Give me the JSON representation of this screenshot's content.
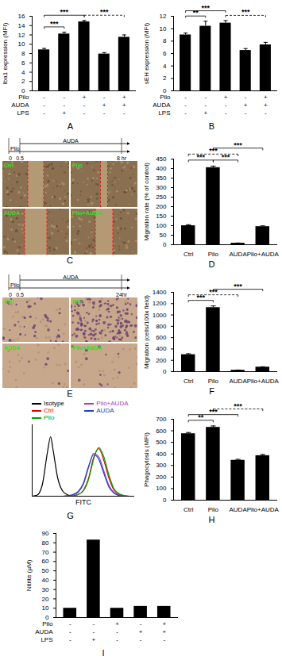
{
  "chart_data": [
    {
      "type": "bar",
      "title": "A",
      "ylabel": "Iba1 expression (MFI)",
      "categories": [
        null,
        null,
        null,
        null,
        null
      ],
      "values": [
        8.8,
        12.2,
        14.8,
        7.9,
        11.5
      ],
      "errors": [
        0.3,
        0.4,
        0.3,
        0.3,
        0.5
      ],
      "color": "#000000",
      "ylim": [
        0,
        16
      ],
      "yticks": [
        0,
        2,
        4,
        6,
        8,
        10,
        12,
        14,
        16
      ],
      "conditions": [
        {
          "name": "Pilo",
          "values": [
            "-",
            "-",
            "+",
            "-",
            "+"
          ]
        },
        {
          "name": "AUDA",
          "values": [
            "-",
            "-",
            "-",
            "+",
            "+"
          ]
        },
        {
          "name": "LPS",
          "values": [
            "-",
            "+",
            "-",
            "-",
            "-"
          ]
        }
      ],
      "annotations": [
        {
          "text": "***",
          "between": [
            0,
            2
          ],
          "line_style": "solid"
        },
        {
          "text": "***",
          "between": [
            0,
            1
          ],
          "line_style": "solid"
        },
        {
          "text": "***",
          "between": [
            2,
            4
          ],
          "line_style": "dashed"
        }
      ]
    },
    {
      "type": "bar",
      "title": "B",
      "ylabel": "sEH expression (MFI)",
      "categories": [
        null,
        null,
        null,
        null,
        null
      ],
      "values": [
        9.0,
        10.4,
        10.9,
        6.5,
        7.4
      ],
      "errors": [
        0.3,
        0.8,
        0.4,
        0.3,
        0.4
      ],
      "color": "#000000",
      "ylim": [
        0,
        12
      ],
      "yticks": [
        0,
        2,
        4,
        6,
        8,
        10,
        12
      ],
      "conditions": [
        {
          "name": "Pilo",
          "values": [
            "-",
            "-",
            "+",
            "-",
            "+"
          ]
        },
        {
          "name": "AUDA",
          "values": [
            "-",
            "-",
            "-",
            "+",
            "+"
          ]
        },
        {
          "name": "LPS",
          "values": [
            "-",
            "+",
            "-",
            "-",
            "-"
          ]
        }
      ],
      "annotations": [
        {
          "text": "***",
          "between": [
            0,
            2
          ],
          "line_style": "solid"
        },
        {
          "text": "**",
          "between": [
            0,
            1
          ],
          "line_style": "solid"
        },
        {
          "text": "***",
          "between": [
            2,
            4
          ],
          "line_style": "dashed"
        }
      ]
    },
    {
      "type": "image",
      "title": "C",
      "timeline": [
        {
          "label": "AUDA",
          "start": "0.5"
        },
        {
          "label": "Pilo",
          "start": "0"
        }
      ],
      "timeline_ticks": [
        "0",
        "0.5",
        "8 hr"
      ],
      "image_labels": [
        "Ctrl",
        "Pilo",
        "AUDA",
        "Pilo+AUDA"
      ]
    },
    {
      "type": "bar",
      "title": "D",
      "ylabel": "Migration rate (% of control)",
      "categories": [
        "Ctrl",
        "Pilo",
        "AUDA",
        "Pilo+AUDA"
      ],
      "values": [
        100,
        405,
        8,
        95
      ],
      "errors": [
        5,
        8,
        1,
        4
      ],
      "color": "#000000",
      "ylim": [
        0,
        450
      ],
      "yticks": [
        0,
        50,
        100,
        150,
        200,
        250,
        300,
        350,
        400,
        450
      ],
      "annotations": [
        {
          "text": "***",
          "between": [
            0,
            1
          ],
          "line_style": "solid"
        },
        {
          "text": "***",
          "between": [
            0,
            2
          ],
          "line_style": "dashed"
        },
        {
          "text": "***",
          "between": [
            1,
            2
          ],
          "line_style": "solid"
        },
        {
          "text": "***",
          "between": [
            1,
            3
          ],
          "line_style": "solid"
        }
      ]
    },
    {
      "type": "image",
      "title": "E",
      "timeline": [
        {
          "label": "AUDA",
          "start": "0.5"
        },
        {
          "label": "Pilo",
          "start": "0"
        }
      ],
      "timeline_ticks": [
        "0",
        "0.5",
        "24hr"
      ],
      "image_labels": [
        "Ctrl",
        "Pilo",
        "AUDA",
        "Pilo+AUDA"
      ]
    },
    {
      "type": "bar",
      "title": "F",
      "ylabel": "Migration (cells/100x field)",
      "categories": [
        "Ctrl",
        "Pilo",
        "AUDA",
        "Pilo+AUDA"
      ],
      "values": [
        300,
        1130,
        25,
        80
      ],
      "errors": [
        15,
        30,
        4,
        6
      ],
      "color": "#000000",
      "ylim": [
        0,
        1400
      ],
      "yticks": [
        0,
        200,
        400,
        600,
        800,
        1000,
        1200,
        1400
      ],
      "annotations": [
        {
          "text": "***",
          "between": [
            0,
            1
          ],
          "line_style": "solid"
        },
        {
          "text": "***",
          "between": [
            0,
            2
          ],
          "line_style": "dashed"
        },
        {
          "text": "***",
          "between": [
            1,
            3
          ],
          "line_style": "solid"
        }
      ]
    },
    {
      "type": "line",
      "title": "G",
      "xlabel": "FITC",
      "tick_labels": false,
      "xlim": [
        0,
        100
      ],
      "ylim": [
        0,
        120
      ],
      "x": [
        0,
        5,
        10,
        15,
        18,
        20,
        25,
        30,
        35,
        40,
        45,
        50,
        55,
        60,
        65,
        70,
        75,
        80,
        85,
        90,
        95,
        100
      ],
      "series": [
        {
          "name": "Isotype",
          "color": "#000000",
          "values": [
            0,
            2,
            20,
            75,
            100,
            82,
            30,
            8,
            2,
            0,
            0,
            0,
            0,
            0,
            0,
            0,
            0,
            0,
            0,
            0,
            0,
            0
          ]
        },
        {
          "name": "Ctrl",
          "color": "#e00000",
          "values": [
            0,
            0,
            0,
            0,
            0,
            0,
            0,
            0,
            0,
            1,
            3,
            10,
            30,
            65,
            80,
            60,
            30,
            10,
            3,
            1,
            0,
            0
          ]
        },
        {
          "name": "Pilo",
          "color": "#00a000",
          "values": [
            0,
            0,
            0,
            0,
            0,
            0,
            0,
            0,
            0,
            1,
            3,
            9,
            28,
            62,
            82,
            66,
            35,
            12,
            4,
            1,
            0,
            0
          ]
        },
        {
          "name": "Pilo+AUDA",
          "color": "#a040c0",
          "values": [
            0,
            0,
            0,
            0,
            0,
            0,
            0,
            0,
            1,
            2,
            7,
            20,
            48,
            72,
            66,
            42,
            18,
            6,
            2,
            0,
            0,
            0
          ]
        },
        {
          "name": "AUDA",
          "color": "#2040c0",
          "values": [
            0,
            0,
            0,
            0,
            0,
            0,
            0,
            0,
            1,
            3,
            8,
            22,
            50,
            70,
            62,
            38,
            15,
            5,
            1,
            0,
            0,
            0
          ]
        }
      ]
    },
    {
      "type": "bar",
      "title": "H",
      "ylabel": "Phagocytosis (MFI)",
      "categories": [
        "Ctrl",
        "Pilo",
        "AUDA",
        "Pilo+AUDA"
      ],
      "values": [
        575,
        630,
        345,
        385
      ],
      "errors": [
        10,
        12,
        8,
        10
      ],
      "color": "#000000",
      "ylim": [
        0,
        700
      ],
      "yticks": [
        0,
        100,
        200,
        300,
        400,
        500,
        600,
        700
      ],
      "annotations": [
        {
          "text": "***",
          "between": [
            0,
            2
          ],
          "line_style": "solid"
        },
        {
          "text": "**",
          "between": [
            0,
            1
          ],
          "line_style": "solid"
        },
        {
          "text": "***",
          "between": [
            1,
            3
          ],
          "line_style": "dashed"
        }
      ]
    },
    {
      "type": "bar",
      "title": "I",
      "ylabel": "Nitrite (µM)",
      "categories": [
        null,
        null,
        null,
        null,
        null
      ],
      "values": [
        10,
        83,
        10,
        12,
        12
      ],
      "color": "#000000",
      "ylim": [
        0,
        90
      ],
      "yticks": [
        0,
        10,
        20,
        30,
        40,
        50,
        60,
        70,
        80,
        90
      ],
      "conditions": [
        {
          "name": "Pilo",
          "values": [
            "-",
            "-",
            "+",
            "-",
            "+"
          ]
        },
        {
          "name": "AUDA",
          "values": [
            "-",
            "-",
            "-",
            "+",
            "+"
          ]
        },
        {
          "name": "LPS",
          "values": [
            "-",
            "+",
            "-",
            "-",
            "-"
          ]
        }
      ]
    }
  ]
}
